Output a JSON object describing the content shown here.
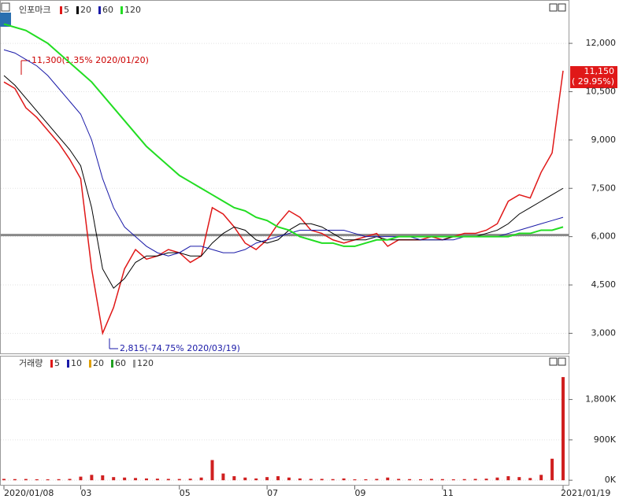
{
  "chart_data": [
    {
      "type": "line",
      "title": "인포마크",
      "series": [
        {
          "name": "5",
          "color": "#e01818",
          "values": [
            10800,
            10600,
            10000,
            9700,
            9300,
            8900,
            8400,
            7800,
            5000,
            3000,
            3800,
            5000,
            5600,
            5300,
            5400,
            5600,
            5500,
            5200,
            5400,
            6900,
            6700,
            6300,
            5800,
            5600,
            5900,
            6400,
            6800,
            6600,
            6200,
            6100,
            5900,
            5800,
            5900,
            6000,
            6100,
            5700,
            5900,
            5900,
            5900,
            6000,
            5900,
            6000,
            6100,
            6100,
            6200,
            6400,
            7100,
            7300,
            7200,
            8000,
            8600,
            11150
          ]
        },
        {
          "name": "20",
          "color": "#000000",
          "values": [
            11000,
            10700,
            10300,
            9900,
            9500,
            9100,
            8700,
            8200,
            6900,
            5000,
            4400,
            4700,
            5200,
            5400,
            5400,
            5500,
            5500,
            5400,
            5400,
            5800,
            6100,
            6300,
            6200,
            5900,
            5800,
            5900,
            6200,
            6400,
            6400,
            6300,
            6100,
            5900,
            5900,
            5900,
            6000,
            5900,
            5900,
            5900,
            5900,
            5900,
            5900,
            6000,
            6000,
            6000,
            6100,
            6200,
            6400,
            6700,
            6900,
            7100,
            7300,
            7500
          ]
        },
        {
          "name": "60",
          "color": "#1a1aa8",
          "values": [
            11800,
            11700,
            11500,
            11300,
            11000,
            10600,
            10200,
            9800,
            9000,
            7800,
            6900,
            6300,
            6000,
            5700,
            5500,
            5400,
            5500,
            5700,
            5700,
            5600,
            5500,
            5500,
            5600,
            5800,
            5900,
            6000,
            6100,
            6200,
            6200,
            6200,
            6200,
            6200,
            6100,
            6000,
            6000,
            6000,
            6000,
            6000,
            5900,
            5900,
            5900,
            5900,
            6000,
            6000,
            6000,
            6000,
            6100,
            6200,
            6300,
            6400,
            6500,
            6600
          ]
        },
        {
          "name": "120",
          "color": "#22dd22",
          "values": [
            12600,
            12500,
            12400,
            12200,
            12000,
            11700,
            11400,
            11100,
            10800,
            10400,
            10000,
            9600,
            9200,
            8800,
            8500,
            8200,
            7900,
            7700,
            7500,
            7300,
            7100,
            6900,
            6800,
            6600,
            6500,
            6300,
            6200,
            6000,
            5900,
            5800,
            5800,
            5700,
            5700,
            5800,
            5900,
            5900,
            6000,
            6000,
            6000,
            6000,
            6000,
            6000,
            6000,
            6000,
            6000,
            6000,
            6000,
            6100,
            6100,
            6200,
            6200,
            6300
          ]
        }
      ],
      "reference_line": 6050,
      "annotations": [
        "11,300(1.35% 2020/01/20)",
        "2,815(-74.75% 2020/03/19)"
      ],
      "last_price": {
        "label": "11,150",
        "change": "( 29.95%)"
      },
      "ylim": [
        2400,
        13150
      ],
      "yticks": [
        {
          "value": 3000,
          "label": "3,000"
        },
        {
          "value": 4500,
          "label": "4,500"
        },
        {
          "value": 6000,
          "label": "6,000"
        },
        {
          "value": 7500,
          "label": "7,500"
        },
        {
          "value": 9000,
          "label": "9,000"
        },
        {
          "value": 10500,
          "label": "10,500"
        },
        {
          "value": 12000,
          "label": "12,000"
        }
      ],
      "grid": true
    },
    {
      "type": "bar",
      "title": "거래량",
      "color": "#d02020",
      "legend": [
        {
          "name": "5",
          "color": "#e01818"
        },
        {
          "name": "10",
          "color": "#1a1aa8"
        },
        {
          "name": "20",
          "color": "#e0a000"
        },
        {
          "name": "60",
          "color": "#20a020"
        },
        {
          "name": "120",
          "color": "#999999"
        }
      ],
      "categories": [
        "2020/01/08",
        null,
        null,
        null,
        null,
        null,
        null,
        "03",
        null,
        null,
        null,
        null,
        null,
        null,
        null,
        null,
        "05",
        null,
        null,
        null,
        null,
        null,
        null,
        null,
        "07",
        null,
        null,
        null,
        null,
        null,
        null,
        null,
        "09",
        null,
        null,
        null,
        null,
        null,
        null,
        null,
        "11",
        null,
        null,
        null,
        null,
        null,
        null,
        null,
        null,
        null,
        null,
        "2021/01/19"
      ],
      "values": [
        30000,
        25000,
        28000,
        22000,
        20000,
        24000,
        30000,
        80000,
        120000,
        110000,
        70000,
        60000,
        50000,
        40000,
        35000,
        30000,
        28000,
        35000,
        60000,
        450000,
        150000,
        90000,
        60000,
        40000,
        70000,
        90000,
        60000,
        40000,
        30000,
        30000,
        25000,
        40000,
        20000,
        22000,
        30000,
        60000,
        30000,
        25000,
        22000,
        30000,
        25000,
        20000,
        25000,
        30000,
        35000,
        60000,
        90000,
        70000,
        50000,
        120000,
        480000,
        2300000
      ],
      "ylim": [
        -120000,
        2600000
      ],
      "yticks": [
        {
          "value": 0,
          "label": "0K"
        },
        {
          "value": 900000,
          "label": "900K"
        },
        {
          "value": 1800000,
          "label": "1,800K"
        }
      ],
      "grid": true
    }
  ]
}
